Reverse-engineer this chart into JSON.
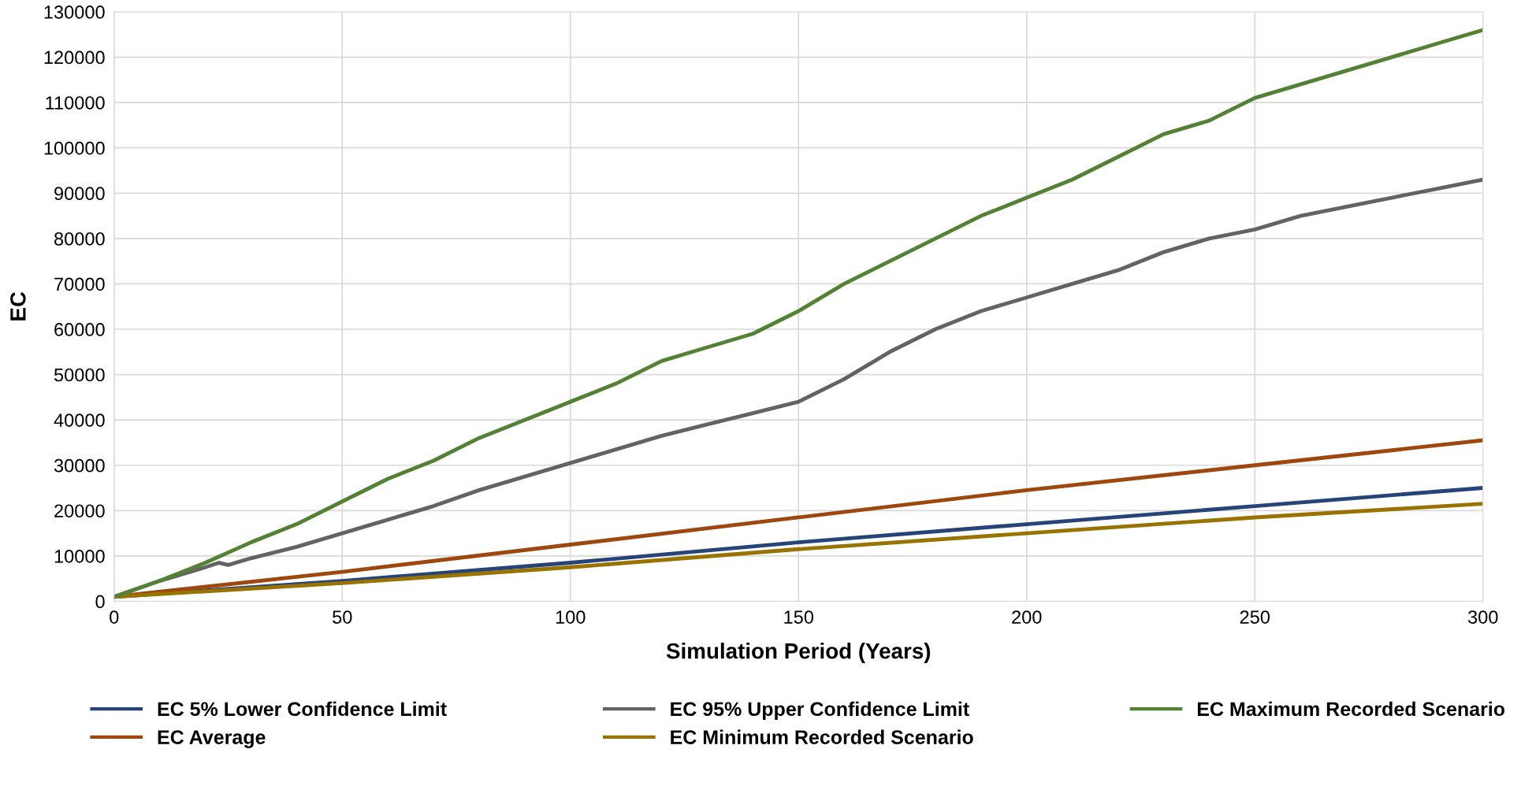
{
  "chart_data": {
    "type": "line",
    "xlabel": "Simulation Period (Years)",
    "ylabel": "EC",
    "xlim": [
      0,
      300
    ],
    "xticks": [
      0,
      50,
      100,
      150,
      200,
      250,
      300
    ],
    "ylim": [
      0,
      130000
    ],
    "yticks": [
      0,
      10000,
      20000,
      30000,
      40000,
      50000,
      60000,
      70000,
      80000,
      90000,
      100000,
      110000,
      120000,
      130000
    ],
    "grid": true,
    "legend": "bottom",
    "marker": "none",
    "line_style": "solid",
    "series": [
      {
        "name": "EC 5% Lower Confidence Limit",
        "color": "#264478",
        "x": [
          0,
          50,
          100,
          150,
          200,
          250,
          300
        ],
        "values": [
          1000,
          4500,
          8500,
          13000,
          17000,
          21000,
          25000
        ]
      },
      {
        "name": "EC Average",
        "color": "#9e480e",
        "x": [
          0,
          50,
          100,
          150,
          200,
          250,
          300
        ],
        "values": [
          1000,
          6500,
          12500,
          18500,
          24500,
          30000,
          35500
        ]
      },
      {
        "name": "EC 95% Upper Confidence Limit",
        "color": "#636363",
        "x": [
          0,
          10,
          20,
          23,
          25,
          30,
          40,
          50,
          60,
          70,
          80,
          90,
          100,
          110,
          120,
          130,
          140,
          150,
          160,
          170,
          180,
          190,
          200,
          210,
          220,
          230,
          240,
          250,
          260,
          270,
          280,
          290,
          300
        ],
        "values": [
          1000,
          4500,
          7500,
          8500,
          8000,
          9500,
          12000,
          15000,
          18000,
          21000,
          24500,
          27500,
          30500,
          33500,
          36500,
          39000,
          41500,
          44000,
          49000,
          55000,
          60000,
          64000,
          67000,
          70000,
          73000,
          77000,
          80000,
          82000,
          85000,
          87000,
          89000,
          91000,
          93000
        ]
      },
      {
        "name": "EC Minimum Recorded Scenario",
        "color": "#997300",
        "x": [
          0,
          50,
          100,
          150,
          200,
          250,
          300
        ],
        "values": [
          1000,
          4000,
          7500,
          11500,
          15000,
          18500,
          21500
        ]
      },
      {
        "name": "EC Maximum Recorded Scenario",
        "color": "#548235",
        "x": [
          0,
          10,
          20,
          30,
          40,
          50,
          60,
          70,
          80,
          90,
          100,
          110,
          120,
          130,
          140,
          150,
          160,
          170,
          180,
          190,
          200,
          210,
          220,
          230,
          240,
          250,
          260,
          270,
          280,
          290,
          300
        ],
        "values": [
          1000,
          4500,
          8500,
          13000,
          17000,
          22000,
          27000,
          31000,
          36000,
          40000,
          44000,
          48000,
          53000,
          56000,
          59000,
          64000,
          70000,
          75000,
          80000,
          85000,
          89000,
          93000,
          98000,
          103000,
          106000,
          111000,
          114000,
          117000,
          120000,
          123000,
          126000
        ]
      }
    ]
  }
}
